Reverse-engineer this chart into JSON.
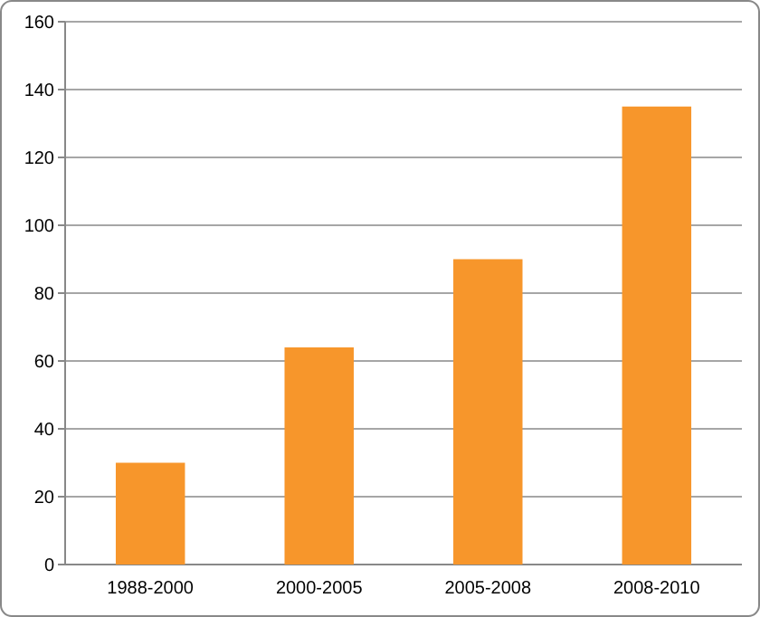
{
  "chart_data": {
    "type": "bar",
    "categories": [
      "1988-2000",
      "2000-2005",
      "2005-2008",
      "2008-2010"
    ],
    "values": [
      30,
      64,
      90,
      135
    ],
    "color": "#f7962b",
    "ylim": [
      0,
      160
    ],
    "yticks": [
      0,
      20,
      40,
      60,
      80,
      100,
      120,
      140,
      160
    ],
    "grid": "y"
  }
}
